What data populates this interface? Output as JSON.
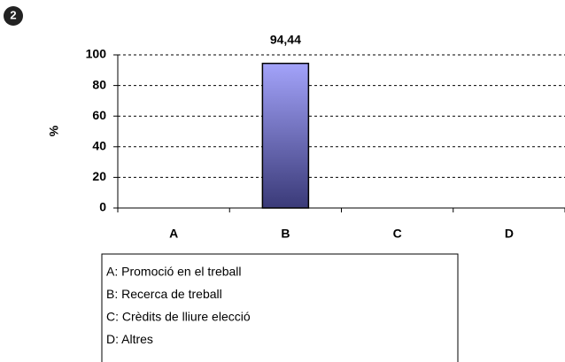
{
  "chart_data": {
    "type": "bar",
    "badge": "2",
    "ylabel": "%",
    "categories": [
      "A",
      "B",
      "C",
      "D"
    ],
    "values": [
      0,
      94.44,
      0,
      0
    ],
    "value_labels": [
      null,
      "94,44",
      null,
      null
    ],
    "ylim": [
      0,
      100
    ],
    "yticks": [
      0,
      20,
      40,
      60,
      80,
      100
    ],
    "grid": true,
    "color": [
      "#a3a3fa",
      "#3a3a78"
    ],
    "annotations": [
      "A: Promoció en el treball",
      "B: Recerca de treball",
      "C: Crèdits de lliure elecció",
      "D: Altres"
    ]
  }
}
